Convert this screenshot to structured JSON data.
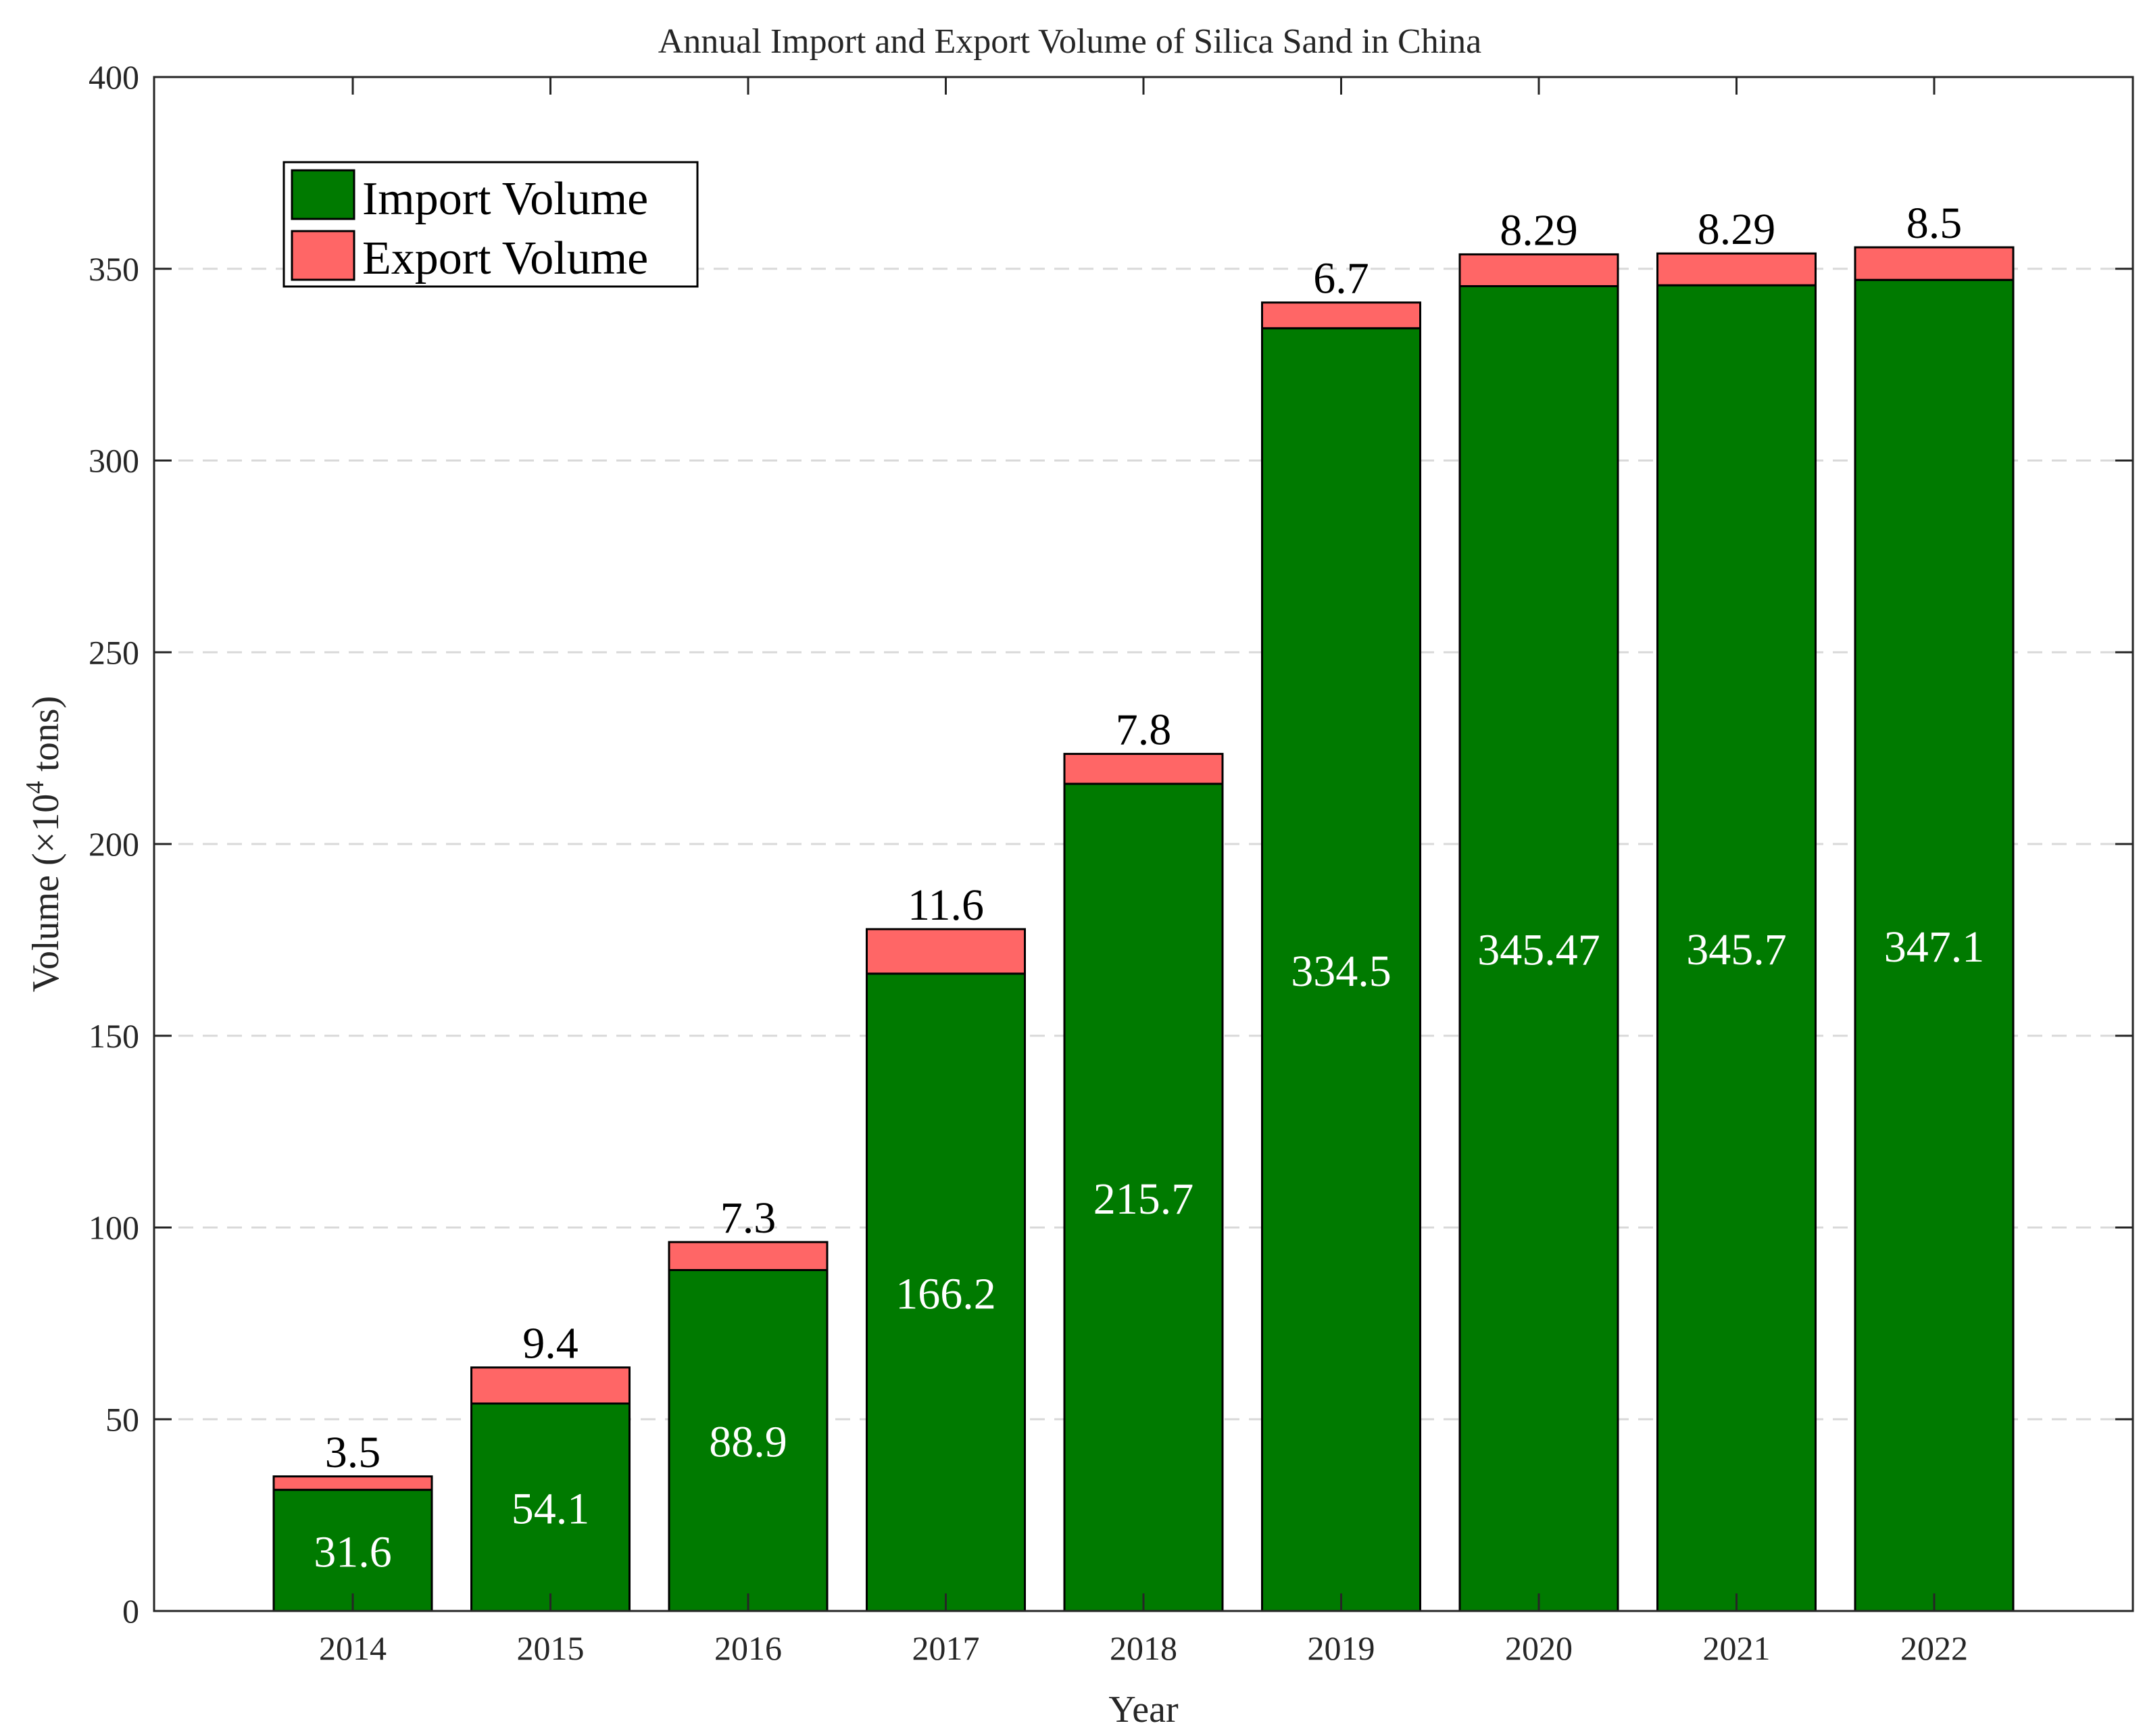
{
  "chart_data": {
    "type": "bar",
    "stacked": true,
    "title": "Annual Import and Export Volume of Silica Sand in China",
    "xlabel": "Year",
    "ylabel_prefix": "Volume (×10",
    "ylabel_exponent": "4",
    "ylabel_suffix": " tons)",
    "ylim": [
      0,
      400
    ],
    "yticks": [
      "0",
      "50",
      "100",
      "150",
      "200",
      "250",
      "300",
      "350",
      "400"
    ],
    "ytick_values": [
      0,
      50,
      100,
      150,
      200,
      250,
      300,
      350,
      400
    ],
    "grid": "horizontal dashed",
    "legend_position": "top-left",
    "categories": [
      "2014",
      "2015",
      "2016",
      "2017",
      "2018",
      "2019",
      "2020",
      "2021",
      "2022"
    ],
    "series": [
      {
        "name": "Import Volume",
        "color": "#007a00",
        "values": [
          31.6,
          54.1,
          88.9,
          166.2,
          215.7,
          334.5,
          345.47,
          345.7,
          347.1
        ],
        "labels": [
          "31.6",
          "54.1",
          "88.9",
          "166.2",
          "215.7",
          "334.5",
          "345.47",
          "345.7",
          "347.1"
        ]
      },
      {
        "name": "Export Volume",
        "color": "#ff6666",
        "values": [
          3.5,
          9.4,
          7.3,
          11.6,
          7.8,
          6.7,
          8.29,
          8.29,
          8.5
        ],
        "labels": [
          "3.5",
          "9.4",
          "7.3",
          "11.6",
          "7.8",
          "6.7",
          "8.29",
          "8.29",
          "8.5"
        ]
      }
    ]
  }
}
